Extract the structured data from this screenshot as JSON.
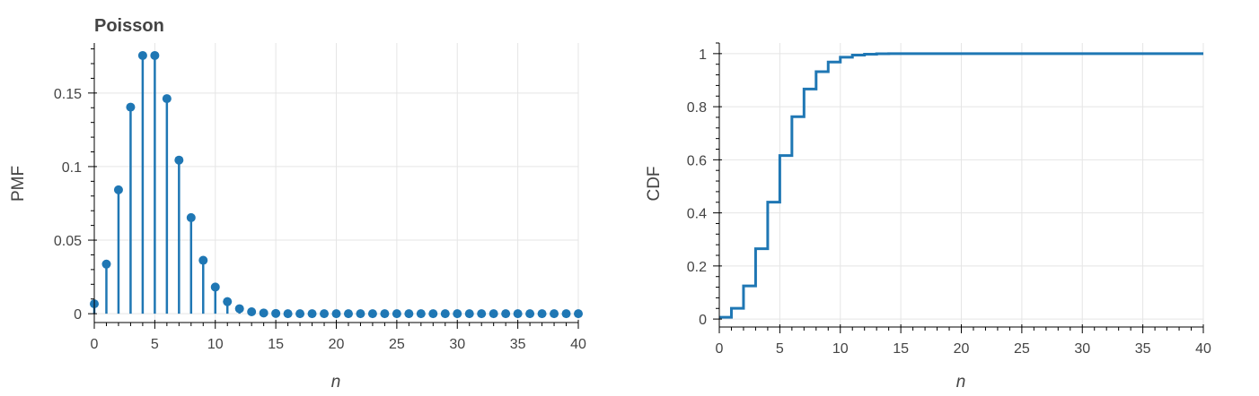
{
  "chart_data": [
    {
      "type": "line",
      "chart_style": "stem",
      "title": "Poisson",
      "xlabel": "n",
      "ylabel": "PMF",
      "xlim": [
        0,
        40
      ],
      "ylim": [
        -0.006,
        0.184
      ],
      "xticks": [
        0,
        5,
        10,
        15,
        20,
        25,
        30,
        35,
        40
      ],
      "xtick_labels": [
        "0",
        "5",
        "10",
        "15",
        "20",
        "25",
        "30",
        "35",
        "40"
      ],
      "yticks": [
        0,
        0.05,
        0.1,
        0.15
      ],
      "ytick_labels": [
        "0",
        "0.05",
        "0.1",
        "0.15"
      ],
      "grid": true,
      "color": "#1f77b4",
      "series": [
        {
          "x": [
            0,
            1,
            2,
            3,
            4,
            5,
            6,
            7,
            8,
            9,
            10,
            11,
            12,
            13,
            14,
            15,
            16,
            17,
            18,
            19,
            20,
            21,
            22,
            23,
            24,
            25,
            26,
            27,
            28,
            29,
            30,
            31,
            32,
            33,
            34,
            35,
            36,
            37,
            38,
            39,
            40
          ],
          "values": [
            0.0067,
            0.0337,
            0.0842,
            0.1404,
            0.1755,
            0.1755,
            0.1462,
            0.1044,
            0.0653,
            0.0363,
            0.0181,
            0.0082,
            0.0034,
            0.0013,
            0.0005,
            0.0002,
            0.0,
            0.0,
            0.0,
            0.0,
            0.0,
            0.0,
            0.0,
            0.0,
            0.0,
            0.0,
            0.0,
            0.0,
            0.0,
            0.0,
            0.0,
            0.0,
            0.0,
            0.0,
            0.0,
            0.0,
            0.0,
            0.0,
            0.0,
            0.0,
            0.0
          ]
        }
      ]
    },
    {
      "type": "line",
      "chart_style": "step",
      "title": "",
      "xlabel": "n",
      "ylabel": "CDF",
      "xlim": [
        0,
        40
      ],
      "ylim": [
        -0.03,
        1.04
      ],
      "xticks": [
        0,
        5,
        10,
        15,
        20,
        25,
        30,
        35,
        40
      ],
      "xtick_labels": [
        "0",
        "5",
        "10",
        "15",
        "20",
        "25",
        "30",
        "35",
        "40"
      ],
      "yticks": [
        0,
        0.2,
        0.4,
        0.6,
        0.8,
        1
      ],
      "ytick_labels": [
        "0",
        "0.2",
        "0.4",
        "0.6",
        "0.8",
        "1"
      ],
      "grid": true,
      "color": "#1f77b4",
      "series": [
        {
          "x": [
            0,
            1,
            2,
            3,
            4,
            5,
            6,
            7,
            8,
            9,
            10,
            11,
            12,
            13,
            14,
            15,
            16,
            17,
            18,
            19,
            20,
            21,
            22,
            23,
            24,
            25,
            26,
            27,
            28,
            29,
            30,
            31,
            32,
            33,
            34,
            35,
            36,
            37,
            38,
            39,
            40
          ],
          "values": [
            0.0067,
            0.0404,
            0.1247,
            0.265,
            0.4405,
            0.616,
            0.7622,
            0.8666,
            0.9319,
            0.9682,
            0.9863,
            0.9945,
            0.998,
            0.9993,
            0.9998,
            0.9999,
            1.0,
            1.0,
            1.0,
            1.0,
            1.0,
            1.0,
            1.0,
            1.0,
            1.0,
            1.0,
            1.0,
            1.0,
            1.0,
            1.0,
            1.0,
            1.0,
            1.0,
            1.0,
            1.0,
            1.0,
            1.0,
            1.0,
            1.0,
            1.0,
            1.0
          ]
        }
      ]
    }
  ]
}
